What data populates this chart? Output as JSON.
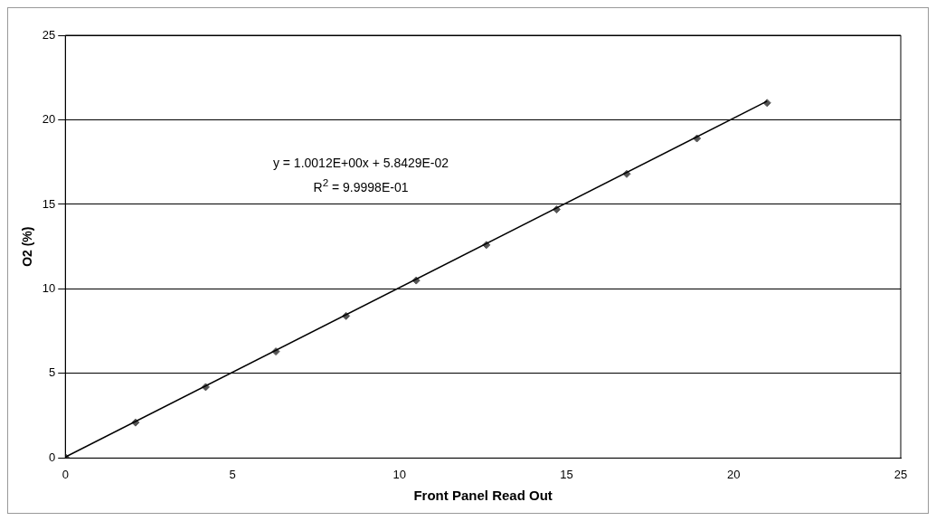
{
  "chart_data": {
    "type": "scatter",
    "xlabel": "Front Panel Read Out",
    "ylabel": "O2 (%)",
    "xlim": [
      0,
      25
    ],
    "xticks": [
      0,
      5,
      10,
      15,
      20,
      25
    ],
    "ylim": [
      0,
      25
    ],
    "yticks": [
      0,
      5,
      10,
      15,
      20,
      25
    ],
    "grid": "y",
    "legend": false,
    "series": [
      {
        "marker": "diamond",
        "color": "#555555",
        "x": [
          0,
          2.1,
          4.2,
          6.3,
          8.4,
          10.5,
          12.6,
          14.7,
          16.8,
          18.9,
          21.0
        ],
        "values": [
          0.05,
          2.1,
          4.2,
          6.3,
          8.4,
          10.5,
          12.6,
          14.7,
          16.8,
          18.9,
          21.0
        ]
      },
      {
        "type": "line",
        "marker": "none",
        "color": "#000000",
        "x": [
          0,
          21.0
        ],
        "values": [
          0.06,
          21.1
        ]
      }
    ],
    "annotations": [
      "y = 1.0012E+00x + 5.8429E-02",
      "R$^{2}$ = 9.9998E-01"
    ]
  }
}
